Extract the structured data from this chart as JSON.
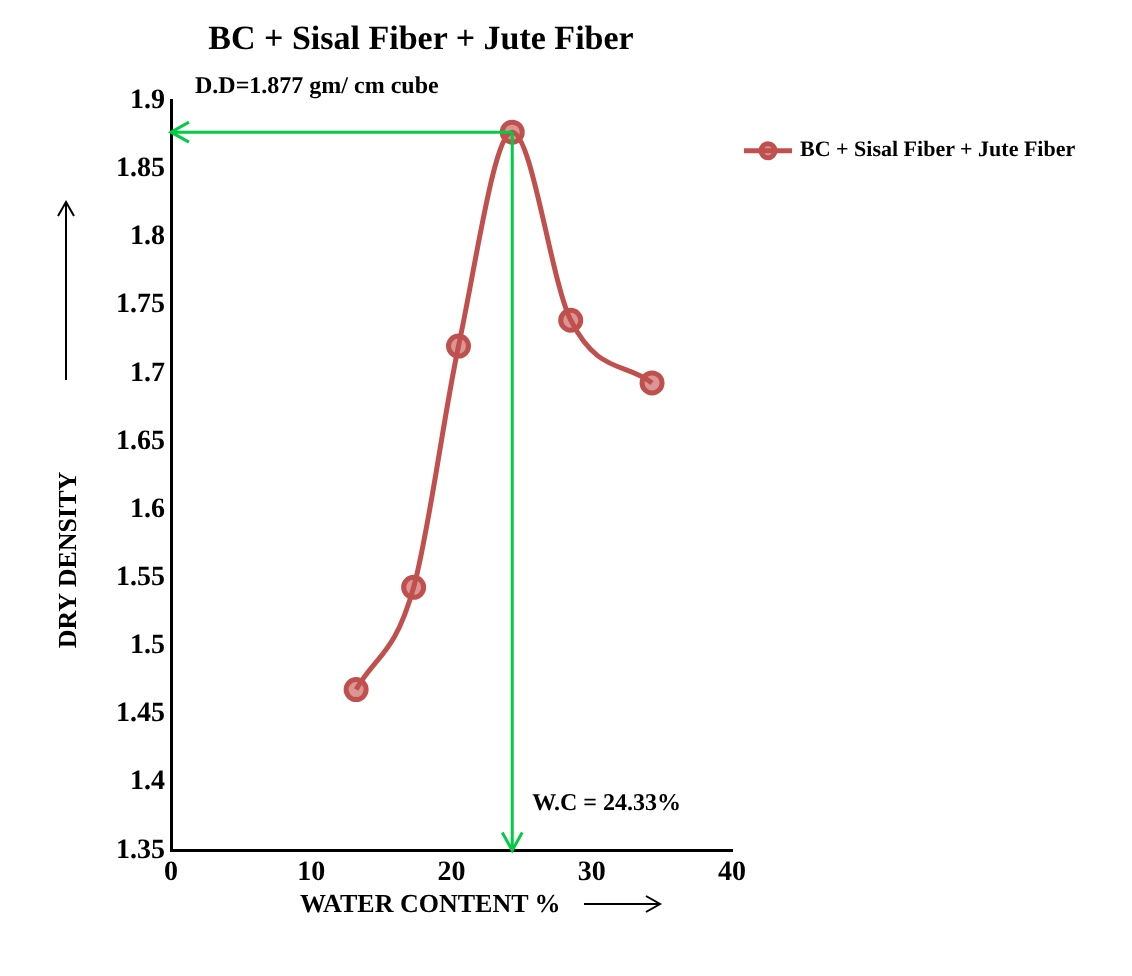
{
  "chart_data": {
    "type": "line",
    "title": "BC + Sisal Fiber + Jute Fiber",
    "xlabel": "WATER CONTENT %",
    "ylabel": "DRY DENSITY",
    "x": [
      13.2,
      17.3,
      20.5,
      24.33,
      28.5,
      34.3
    ],
    "series": [
      {
        "name": "BC + Sisal Fiber + Jute Fiber",
        "color": "#c0504d",
        "values": [
          1.468,
          1.543,
          1.72,
          1.877,
          1.739,
          1.693
        ]
      }
    ],
    "xlim": [
      0,
      40
    ],
    "xticks": [
      0,
      10,
      20,
      30,
      40
    ],
    "ylim": [
      1.35,
      1.9
    ],
    "yticks": [
      1.35,
      1.4,
      1.45,
      1.5,
      1.55,
      1.6,
      1.65,
      1.7,
      1.75,
      1.8,
      1.85,
      1.9
    ],
    "ref_lines": [
      {
        "axis": "y",
        "value": 1.877,
        "label": "D.D=1.877 gm/ cm cube",
        "color": "#00cc44"
      },
      {
        "axis": "x",
        "value": 24.33,
        "label": "W.C = 24.33%",
        "color": "#00cc44"
      }
    ],
    "legend": "right",
    "marker": "circle",
    "grid": false
  }
}
